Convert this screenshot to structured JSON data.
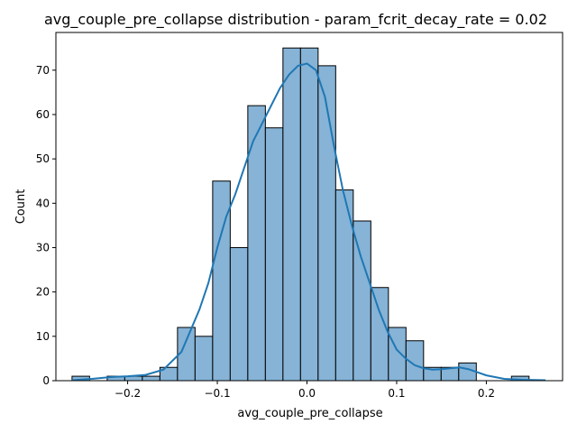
{
  "chart_data": {
    "type": "bar",
    "subtype": "histogram-with-kde",
    "title": "avg_couple_pre_collapse distribution - param_fcrit_decay_rate = 0.02",
    "xlabel": "avg_couple_pre_collapse",
    "ylabel": "Count",
    "xlim": [
      -0.28,
      0.285
    ],
    "ylim": [
      0,
      78.5
    ],
    "bin_start": -0.262,
    "bin_width": 0.0196,
    "values": [
      1,
      0,
      1,
      1,
      1,
      3,
      12,
      10,
      45,
      30,
      62,
      57,
      75,
      75,
      71,
      43,
      36,
      21,
      12,
      9,
      3,
      3,
      4,
      0,
      0,
      1
    ],
    "xticks": [
      -0.2,
      -0.1,
      0.0,
      0.1,
      0.2
    ],
    "xtick_labels": [
      "−0.2",
      "−0.1",
      "0.0",
      "0.1",
      "0.2"
    ],
    "yticks": [
      0,
      10,
      20,
      30,
      40,
      50,
      60,
      70
    ],
    "ytick_labels": [
      "0",
      "10",
      "20",
      "30",
      "40",
      "50",
      "60",
      "70"
    ],
    "kde": {
      "x": [
        -0.262,
        -0.24,
        -0.22,
        -0.2,
        -0.18,
        -0.16,
        -0.14,
        -0.12,
        -0.11,
        -0.1,
        -0.09,
        -0.08,
        -0.07,
        -0.06,
        -0.05,
        -0.04,
        -0.03,
        -0.02,
        -0.01,
        0.0,
        0.01,
        0.02,
        0.03,
        0.04,
        0.05,
        0.06,
        0.07,
        0.08,
        0.09,
        0.1,
        0.11,
        0.12,
        0.13,
        0.14,
        0.15,
        0.16,
        0.17,
        0.18,
        0.2,
        0.22,
        0.24,
        0.266
      ],
      "y": [
        0.1,
        0.4,
        0.8,
        1.0,
        1.3,
        2.5,
        6.5,
        16,
        22,
        30,
        37,
        42,
        48,
        54,
        58,
        62,
        66,
        69,
        71,
        71.5,
        70,
        64,
        53,
        43,
        35,
        28,
        22,
        16,
        11,
        7,
        5,
        3.5,
        2.8,
        2.5,
        2.6,
        2.8,
        3,
        2.6,
        1.2,
        0.4,
        0.2,
        0.1
      ]
    },
    "colors": {
      "bar_fill": "#86b3d6",
      "bar_edge": "#000000",
      "kde_line": "#1f77b4"
    },
    "grid": false,
    "legend": "none"
  }
}
